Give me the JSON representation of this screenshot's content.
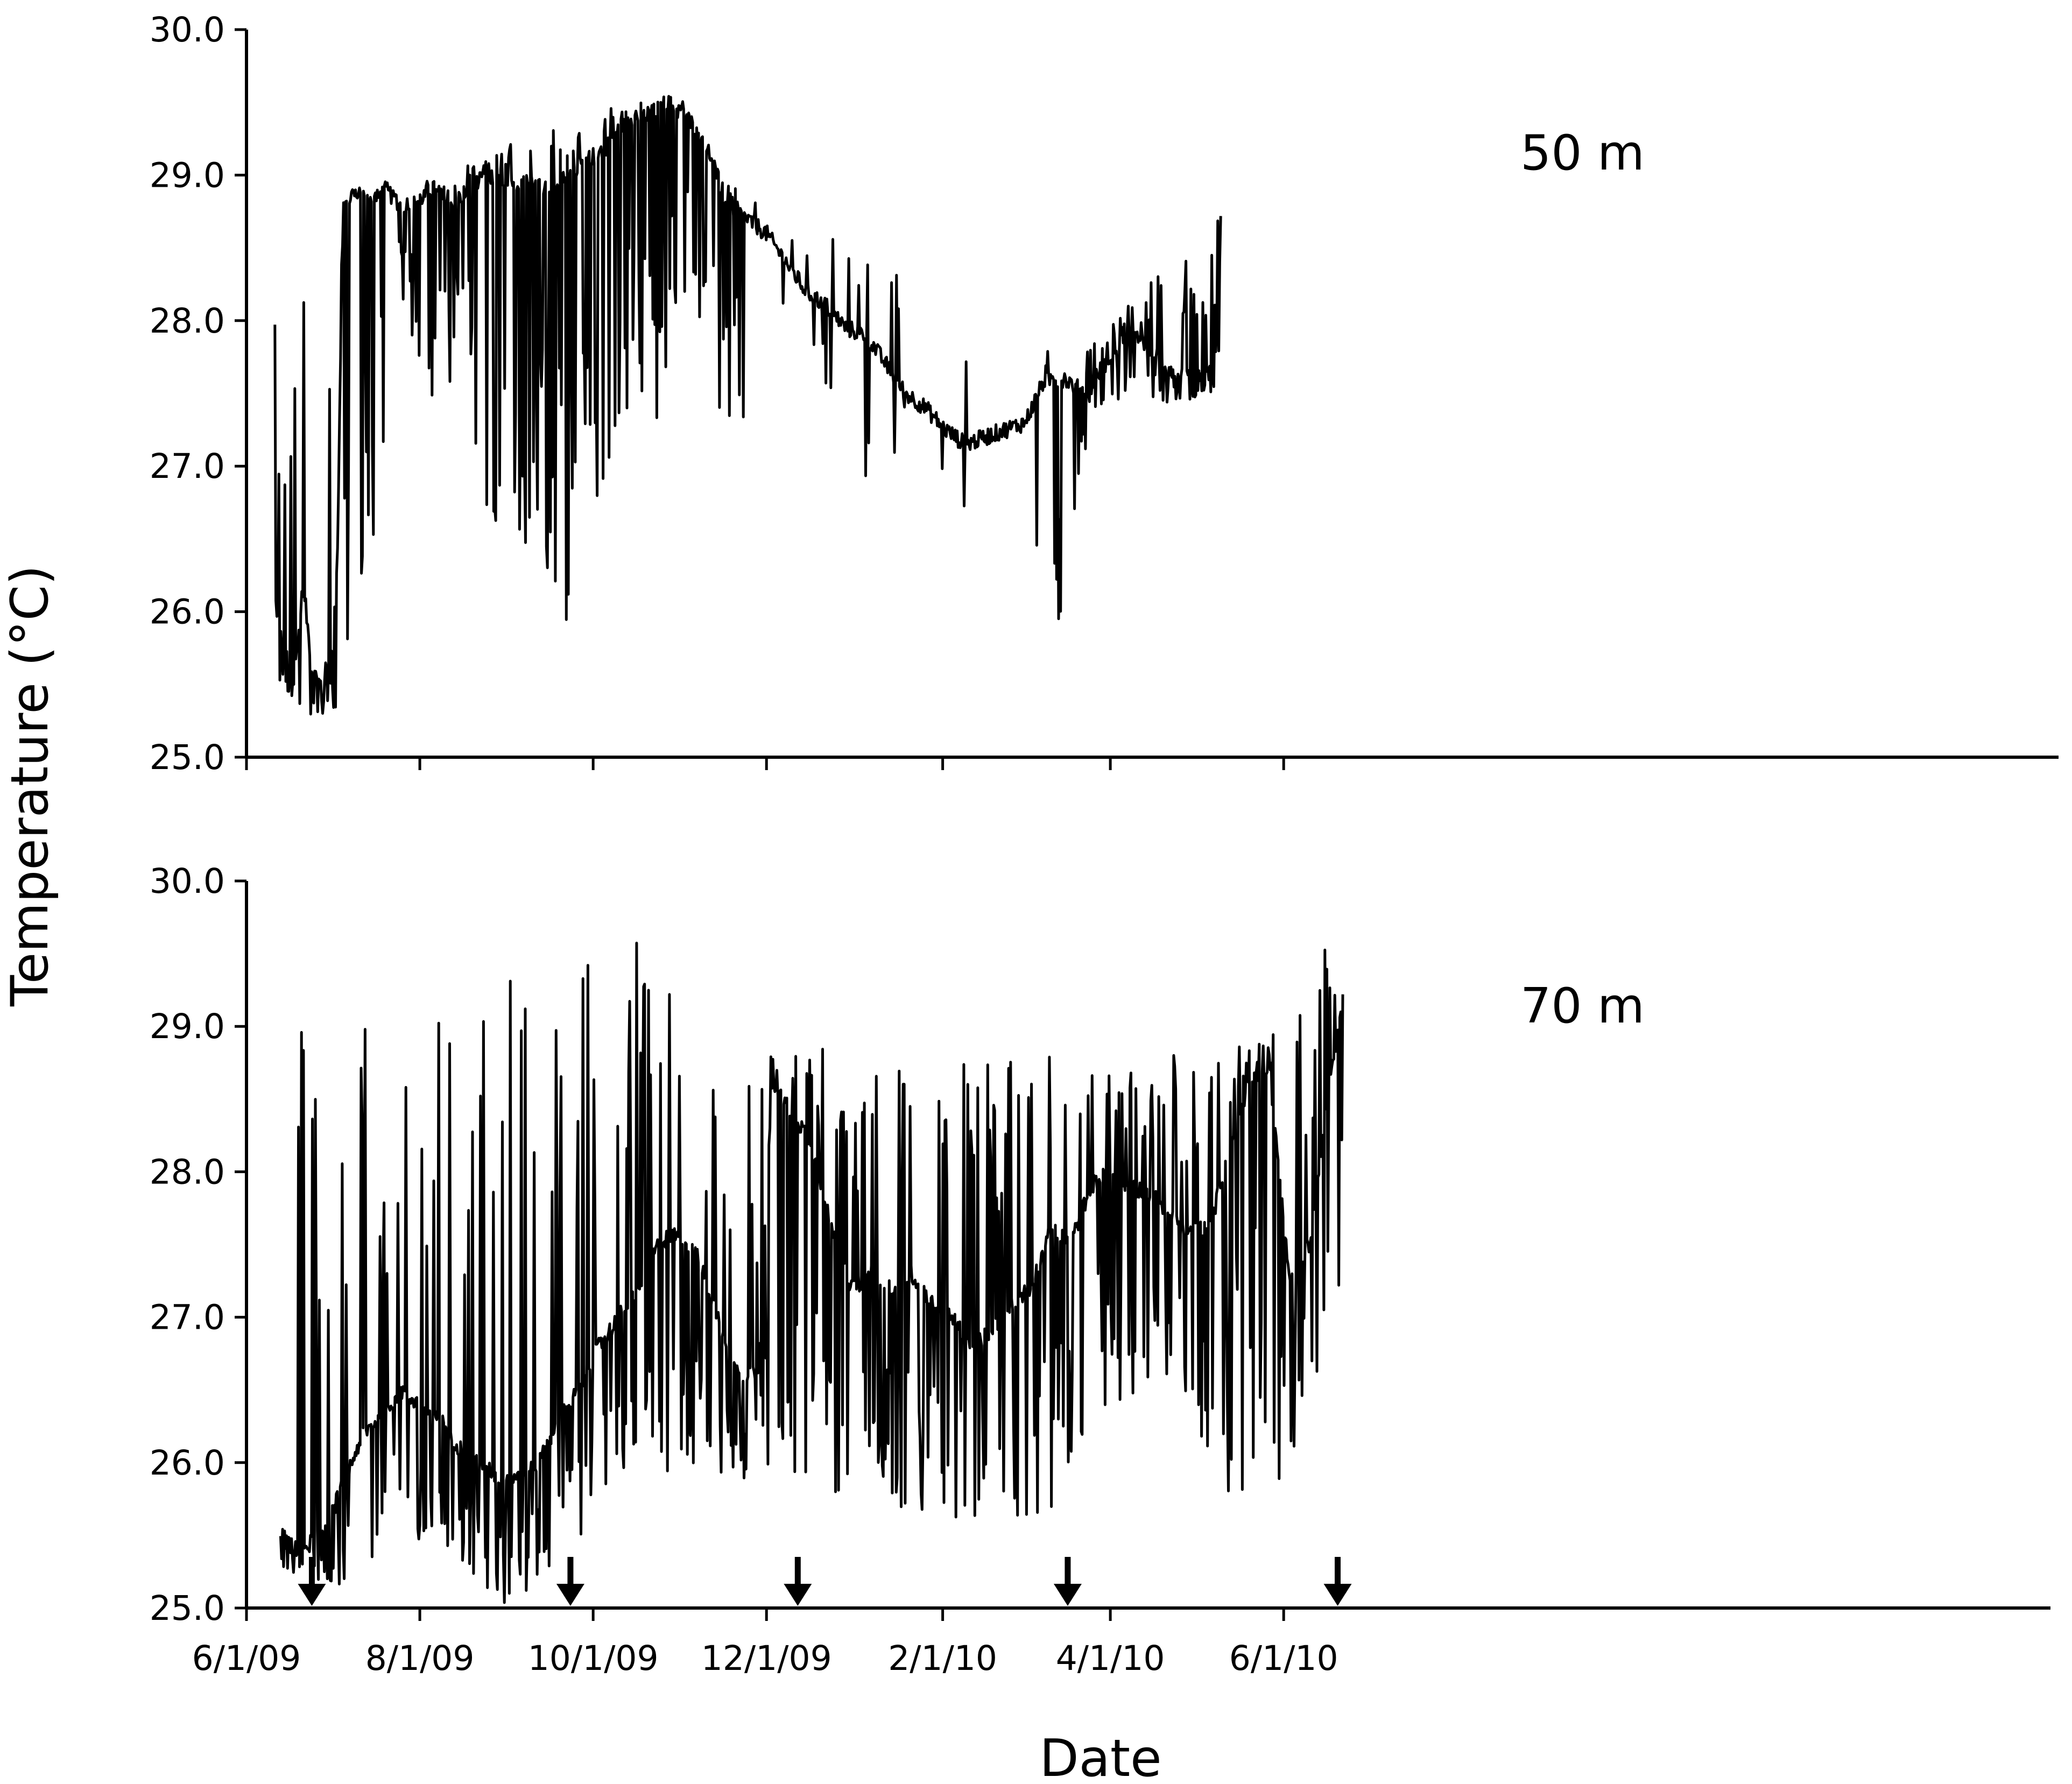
{
  "chart_data": {
    "type": "line",
    "ylabel": "Temperature (°C)",
    "xlabel": "Date",
    "y_ticks": [
      "25.0",
      "26.0",
      "27.0",
      "28.0",
      "29.0",
      "30.0"
    ],
    "x_ticks": [
      "6/1/09",
      "8/1/09",
      "10/1/09",
      "12/1/09",
      "2/1/10",
      "4/1/10",
      "6/1/10"
    ],
    "ylim": [
      25.0,
      30.0
    ],
    "xlim": [
      "2009-06-01",
      "2010-06-20"
    ],
    "grid": false,
    "line_color": "#000000",
    "panels": [
      {
        "label": "50 m",
        "series": [
          {
            "mean": [
              [
                "2009-06-11",
                26.1
              ],
              [
                "2009-06-14",
                25.7
              ],
              [
                "2009-06-18",
                25.6
              ],
              [
                "2009-06-21",
                26.2
              ],
              [
                "2009-06-24",
                25.6
              ],
              [
                "2009-06-27",
                25.5
              ],
              [
                "2009-07-01",
                25.7
              ],
              [
                "2009-07-03",
                26.4
              ],
              [
                "2009-07-05",
                28.8
              ],
              [
                "2009-07-10",
                28.9
              ],
              [
                "2009-07-15",
                28.8
              ],
              [
                "2009-07-20",
                28.9
              ],
              [
                "2009-07-25",
                28.8
              ],
              [
                "2009-07-30",
                28.8
              ],
              [
                "2009-08-05",
                28.9
              ],
              [
                "2009-08-12",
                28.8
              ],
              [
                "2009-08-18",
                28.9
              ],
              [
                "2009-08-25",
                29.0
              ],
              [
                "2009-09-01",
                28.9
              ],
              [
                "2009-09-08",
                29.0
              ],
              [
                "2009-09-15",
                28.9
              ],
              [
                "2009-09-22",
                29.0
              ],
              [
                "2009-09-29",
                29.1
              ],
              [
                "2009-10-06",
                29.2
              ],
              [
                "2009-10-13",
                29.4
              ],
              [
                "2009-10-20",
                29.4
              ],
              [
                "2009-10-27",
                29.5
              ],
              [
                "2009-11-03",
                29.4
              ],
              [
                "2009-11-10",
                29.2
              ],
              [
                "2009-11-17",
                28.8
              ],
              [
                "2009-11-24",
                28.7
              ],
              [
                "2009-12-01",
                28.6
              ],
              [
                "2009-12-08",
                28.4
              ],
              [
                "2009-12-15",
                28.2
              ],
              [
                "2009-12-22",
                28.1
              ],
              [
                "2009-12-29",
                27.95
              ],
              [
                "2010-01-05",
                27.9
              ],
              [
                "2010-01-12",
                27.7
              ],
              [
                "2010-01-19",
                27.5
              ],
              [
                "2010-01-26",
                27.4
              ],
              [
                "2010-02-02",
                27.25
              ],
              [
                "2010-02-09",
                27.15
              ],
              [
                "2010-02-16",
                27.2
              ],
              [
                "2010-02-23",
                27.25
              ],
              [
                "2010-03-02",
                27.3
              ],
              [
                "2010-03-09",
                27.6
              ],
              [
                "2010-03-16",
                27.6
              ],
              [
                "2010-03-23",
                27.5
              ],
              [
                "2010-03-30",
                27.7
              ],
              [
                "2010-04-06",
                27.9
              ],
              [
                "2010-04-13",
                27.85
              ],
              [
                "2010-04-20",
                27.7
              ],
              [
                "2010-04-27",
                27.6
              ],
              [
                "2010-05-04",
                27.6
              ],
              [
                "2010-05-08",
                27.7
              ],
              [
                "2010-05-10",
                28.7
              ]
            ],
            "lows": [
              [
                "2009-06-11",
                25.5
              ],
              [
                "2009-06-18",
                25.4
              ],
              [
                "2009-06-25",
                25.2
              ],
              [
                "2009-07-02",
                25.3
              ],
              [
                "2009-07-15",
                26.4
              ],
              [
                "2009-07-25",
                28.2
              ],
              [
                "2009-08-08",
                27.1
              ],
              [
                "2009-08-15",
                28.0
              ],
              [
                "2009-08-25",
                26.5
              ],
              [
                "2009-08-28",
                25.5
              ],
              [
                "2009-09-02",
                25.5
              ],
              [
                "2009-09-08",
                26.5
              ],
              [
                "2009-09-15",
                25.9
              ],
              [
                "2009-09-21",
                25.4
              ],
              [
                "2009-09-28",
                26.7
              ],
              [
                "2009-10-06",
                26.8
              ],
              [
                "2009-10-13",
                27.2
              ],
              [
                "2009-10-22",
                27.1
              ],
              [
                "2009-10-29",
                27.5
              ],
              [
                "2009-11-05",
                28.2
              ],
              [
                "2009-11-15",
                27.3
              ],
              [
                "2009-11-22",
                27.0
              ],
              [
                "2009-12-01",
                27.0
              ],
              [
                "2009-12-10",
                28.3
              ],
              [
                "2010-01-05",
                26.6
              ],
              [
                "2010-01-12",
                26.9
              ],
              [
                "2010-01-20",
                27.3
              ],
              [
                "2010-02-08",
                26.7
              ],
              [
                "2010-03-16",
                25.9
              ],
              [
                "2010-03-25",
                27.4
              ],
              [
                "2010-04-30",
                27.45
              ]
            ],
            "highs": [
              [
                "2009-06-10",
                27.9
              ],
              [
                "2009-06-19",
                28.6
              ],
              [
                "2009-06-27",
                28.7
              ],
              [
                "2009-07-03",
                28.8
              ],
              [
                "2009-08-05",
                29.0
              ],
              [
                "2009-08-25",
                29.1
              ],
              [
                "2009-09-05",
                29.3
              ],
              [
                "2009-09-13",
                29.6
              ],
              [
                "2009-09-19",
                29.2
              ],
              [
                "2009-10-06",
                29.5
              ],
              [
                "2009-10-15",
                29.5
              ],
              [
                "2009-10-22",
                29.5
              ],
              [
                "2009-11-01",
                29.55
              ],
              [
                "2009-11-12",
                29.1
              ],
              [
                "2009-11-25",
                28.85
              ],
              [
                "2010-03-12",
                27.8
              ],
              [
                "2010-03-20",
                27.7
              ],
              [
                "2010-04-07",
                28.1
              ],
              [
                "2010-05-10",
                28.75
              ]
            ]
          }
        ]
      },
      {
        "label": "70 m",
        "arrows": [
          "2009-06-24",
          "2009-09-23",
          "2009-12-12",
          "2010-03-17",
          "2010-06-20"
        ],
        "series": [
          {
            "mean": [
              [
                "2009-06-13",
                25.5
              ],
              [
                "2009-06-18",
                25.4
              ],
              [
                "2009-06-24",
                25.45
              ],
              [
                "2009-06-30",
                25.6
              ],
              [
                "2009-07-06",
                25.9
              ],
              [
                "2009-07-12",
                26.2
              ],
              [
                "2009-07-18",
                26.3
              ],
              [
                "2009-07-25",
                26.5
              ],
              [
                "2009-08-01",
                26.4
              ],
              [
                "2009-08-08",
                26.3
              ],
              [
                "2009-08-15",
                26.1
              ],
              [
                "2009-08-22",
                26.0
              ],
              [
                "2009-08-29",
                25.9
              ],
              [
                "2009-09-05",
                25.9
              ],
              [
                "2009-09-12",
                26.0
              ],
              [
                "2009-09-19",
                26.3
              ],
              [
                "2009-09-26",
                26.5
              ],
              [
                "2009-10-03",
                26.8
              ],
              [
                "2009-10-10",
                27.0
              ],
              [
                "2009-10-17",
                27.2
              ],
              [
                "2009-10-24",
                27.5
              ],
              [
                "2009-10-31",
                27.6
              ],
              [
                "2009-11-07",
                27.4
              ],
              [
                "2009-11-14",
                27.0
              ],
              [
                "2009-11-21",
                26.6
              ],
              [
                "2009-11-28",
                26.6
              ],
              [
                "2009-12-03",
                28.6
              ],
              [
                "2009-12-10",
                28.4
              ],
              [
                "2009-12-17",
                28.2
              ],
              [
                "2009-12-24",
                27.6
              ],
              [
                "2009-12-31",
                27.2
              ],
              [
                "2010-01-07",
                27.3
              ],
              [
                "2010-01-14",
                27.2
              ],
              [
                "2010-01-21",
                27.3
              ],
              [
                "2010-01-28",
                27.1
              ],
              [
                "2010-02-04",
                27.0
              ],
              [
                "2010-02-11",
                26.8
              ],
              [
                "2010-02-18",
                26.9
              ],
              [
                "2010-02-25",
                27.1
              ],
              [
                "2010-03-04",
                27.2
              ],
              [
                "2010-03-11",
                27.6
              ],
              [
                "2010-03-18",
                27.5
              ],
              [
                "2010-03-25",
                27.9
              ],
              [
                "2010-04-01",
                28.0
              ],
              [
                "2010-04-08",
                27.9
              ],
              [
                "2010-04-15",
                27.85
              ],
              [
                "2010-04-22",
                27.7
              ],
              [
                "2010-04-29",
                27.6
              ],
              [
                "2010-05-06",
                27.6
              ],
              [
                "2010-05-13",
                28.2
              ],
              [
                "2010-05-20",
                28.6
              ],
              [
                "2010-05-27",
                28.7
              ],
              [
                "2010-06-03",
                27.3
              ],
              [
                "2010-06-10",
                27.5
              ],
              [
                "2010-06-17",
                28.6
              ],
              [
                "2010-06-22",
                29.2
              ]
            ],
            "lows": [
              [
                "2009-06-14",
                25.25
              ],
              [
                "2009-06-24",
                25.2
              ],
              [
                "2009-07-12",
                25.1
              ],
              [
                "2009-07-25",
                25.4
              ],
              [
                "2009-08-10",
                25.4
              ],
              [
                "2009-08-28",
                25.0
              ],
              [
                "2009-09-05",
                25.0
              ],
              [
                "2009-09-18",
                25.3
              ],
              [
                "2009-09-27",
                25.5
              ],
              [
                "2009-10-15",
                26.0
              ],
              [
                "2009-11-12",
                25.8
              ],
              [
                "2009-11-24",
                25.9
              ],
              [
                "2009-12-20",
                25.3
              ],
              [
                "2010-01-05",
                25.6
              ],
              [
                "2010-01-25",
                25.6
              ],
              [
                "2010-02-12",
                25.5
              ],
              [
                "2010-03-10",
                25.6
              ],
              [
                "2010-03-18",
                26.0
              ],
              [
                "2010-04-01",
                26.4
              ],
              [
                "2010-04-22",
                26.6
              ],
              [
                "2010-05-10",
                25.8
              ],
              [
                "2010-05-28",
                25.7
              ],
              [
                "2010-06-15",
                26.6
              ]
            ],
            "highs": [
              [
                "2009-07-05",
                29.05
              ],
              [
                "2009-07-25",
                29.0
              ],
              [
                "2009-08-01",
                29.1
              ],
              [
                "2009-08-15",
                29.2
              ],
              [
                "2009-08-28",
                29.3
              ],
              [
                "2009-09-02",
                29.4
              ],
              [
                "2009-09-22",
                29.2
              ],
              [
                "2009-10-03",
                29.55
              ],
              [
                "2009-10-13",
                29.6
              ],
              [
                "2009-10-22",
                29.55
              ],
              [
                "2009-11-25",
                28.6
              ],
              [
                "2009-12-01",
                28.85
              ],
              [
                "2010-05-10",
                28.8
              ],
              [
                "2010-05-20",
                28.9
              ],
              [
                "2010-06-05",
                29.0
              ],
              [
                "2010-06-12",
                29.45
              ],
              [
                "2010-06-18",
                29.6
              ]
            ]
          }
        ]
      }
    ]
  }
}
